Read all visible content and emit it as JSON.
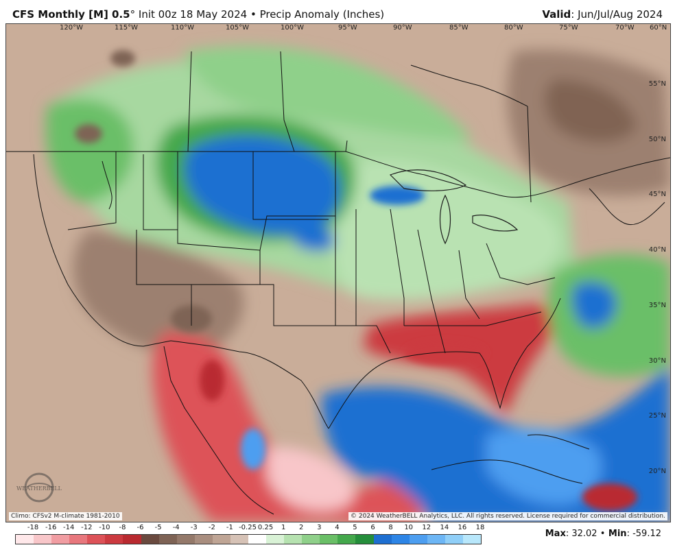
{
  "header": {
    "model": "CFS Monthly [M] 0.5",
    "degree": "°",
    "init": " Init 00z 18 May 2024 ",
    "bullet": "•",
    "product": " Precip Anomaly (Inches)",
    "valid_label": "Valid",
    "valid_value": ": Jun/Jul/Aug 2024"
  },
  "map": {
    "lon_labels": [
      "120°W",
      "115°W",
      "110°W",
      "105°W",
      "100°W",
      "95°W",
      "90°W",
      "85°W",
      "80°W",
      "75°W",
      "70°W",
      "60°N"
    ],
    "lat_labels": [
      "55°N",
      "50°N",
      "45°N",
      "40°N",
      "35°N",
      "30°N",
      "25°N",
      "20°N"
    ],
    "watermark_text": "WEATHERBELL",
    "climo_note": "Climo: CFSv2 M-climate 1981-2010",
    "copyright": "© 2024 WeatherBELL Analytics, LLC. All rights reserved. License required for commercial distribution."
  },
  "legend": {
    "labels": [
      "-18",
      "-16",
      "-14",
      "-12",
      "-10",
      "-8",
      "-6",
      "-5",
      "-4",
      "-3",
      "-2",
      "-1",
      "-0.25",
      "0.25",
      "1",
      "2",
      "3",
      "4",
      "5",
      "6",
      "8",
      "10",
      "12",
      "14",
      "16",
      "18"
    ],
    "colors": [
      "#ffe8ea",
      "#f8c6c9",
      "#f19da2",
      "#e8777d",
      "#dd5258",
      "#cc3a40",
      "#b92a30",
      "#6a4a3f",
      "#7e6355",
      "#94796a",
      "#a98e7f",
      "#bfa595",
      "#d6c2b6",
      "#ffffff",
      "#d9f2d6",
      "#b6e2b0",
      "#8fd08a",
      "#6abf67",
      "#44a84c",
      "#258e3b",
      "#1e6fd1",
      "#2d85e6",
      "#4d9ef0",
      "#6db6f5",
      "#90cff8",
      "#b8e7fb"
    ]
  },
  "stats": {
    "max_label": "Max",
    "max_value": ": 32.02 ",
    "bullet": "•",
    "min_label": " Min",
    "min_value": ": -59.12"
  }
}
